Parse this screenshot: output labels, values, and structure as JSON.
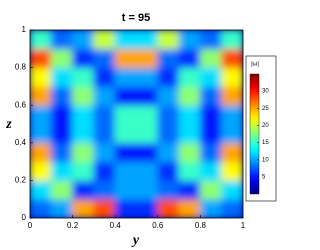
{
  "chart_data": {
    "type": "heatmap",
    "title": "t = 95",
    "x_label": "y",
    "y_label": "z",
    "xlim": [
      0,
      1
    ],
    "ylim": [
      0,
      1
    ],
    "xticks": [
      0,
      0.2,
      0.4,
      0.6,
      0.8,
      1
    ],
    "yticks": [
      0,
      0.2,
      0.4,
      0.6,
      0.8,
      1
    ],
    "colormap": "jet",
    "clim": [
      0,
      35
    ],
    "colorbar_label": "|ω|",
    "colorbar_ticks": [
      5,
      10,
      15,
      20,
      25,
      30
    ],
    "values": [
      [
        8,
        10,
        25,
        28,
        6,
        6,
        28,
        25,
        10,
        8
      ],
      [
        12,
        18,
        6,
        8,
        10,
        10,
        8,
        6,
        18,
        12
      ],
      [
        22,
        12,
        15,
        6,
        10,
        10,
        6,
        15,
        12,
        22
      ],
      [
        25,
        8,
        18,
        10,
        5,
        5,
        10,
        18,
        8,
        25
      ],
      [
        10,
        5,
        12,
        8,
        15,
        15,
        8,
        12,
        5,
        10
      ],
      [
        10,
        5,
        12,
        8,
        15,
        15,
        8,
        12,
        5,
        10
      ],
      [
        25,
        8,
        18,
        10,
        5,
        5,
        10,
        18,
        8,
        25
      ],
      [
        22,
        12,
        15,
        6,
        10,
        10,
        6,
        15,
        12,
        22
      ],
      [
        28,
        18,
        6,
        8,
        25,
        25,
        8,
        6,
        18,
        28
      ],
      [
        15,
        8,
        10,
        20,
        12,
        12,
        20,
        10,
        8,
        15
      ]
    ]
  }
}
